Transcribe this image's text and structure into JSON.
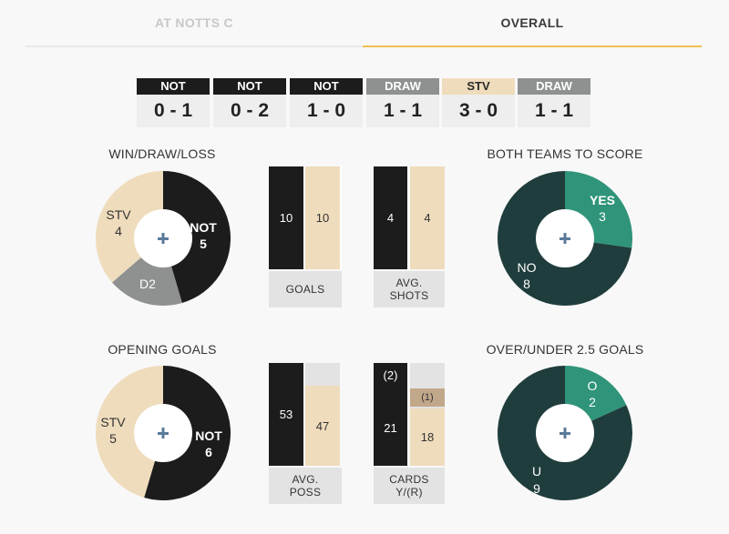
{
  "tabs": [
    {
      "label": "AT NOTTS C"
    },
    {
      "label": "OVERALL"
    }
  ],
  "colors": {
    "not": "#1c1c1c",
    "stv": "#efdcbc",
    "draw": "#8e9190",
    "btts_yes": "#2f9479",
    "btts_no": "#1f3d3c",
    "accent": "#f0c050"
  },
  "form": [
    {
      "team": "NOT",
      "score": "0 - 1"
    },
    {
      "team": "NOT",
      "score": "0 - 2"
    },
    {
      "team": "NOT",
      "score": "1 - 0"
    },
    {
      "team": "DRAW",
      "score": "1 - 1"
    },
    {
      "team": "STV",
      "score": "3 - 0"
    },
    {
      "team": "DRAW",
      "score": "1 - 1"
    }
  ],
  "win_draw_loss": {
    "title": "WIN/DRAW/LOSS",
    "segments": [
      {
        "name": "NOT",
        "value": 5,
        "label": "NOT",
        "count": "5"
      },
      {
        "name": "D",
        "value": 2,
        "label": "D2",
        "count": ""
      },
      {
        "name": "STV",
        "value": 4,
        "label": "STV",
        "count": "4"
      }
    ]
  },
  "goals": {
    "caption": [
      "GOALS"
    ],
    "not": "10",
    "stv": "10"
  },
  "avg_shots": {
    "caption": [
      "AVG.",
      "SHOTS"
    ],
    "not": "4",
    "stv": "4"
  },
  "btts": {
    "title": "BOTH TEAMS TO SCORE",
    "segments": [
      {
        "name": "YES",
        "value": 3,
        "label": "YES",
        "count": "3"
      },
      {
        "name": "NO",
        "value": 8,
        "label": "NO",
        "count": "8"
      }
    ]
  },
  "opening_goals": {
    "title": "OPENING GOALS",
    "segments": [
      {
        "name": "NOT",
        "value": 6,
        "label": "NOT",
        "count": "6"
      },
      {
        "name": "STV",
        "value": 5,
        "label": "STV",
        "count": "5"
      }
    ]
  },
  "avg_poss": {
    "caption": [
      "AVG.",
      "POSS"
    ],
    "not": "53",
    "stv": "47",
    "not_pct": 53,
    "stv_pct": 47
  },
  "cards": {
    "caption": [
      "CARDS",
      "Y/(R)"
    ],
    "not_y": "21",
    "not_r": "(2)",
    "stv_y": "18",
    "stv_r": "(1)"
  },
  "over_under": {
    "title": "OVER/UNDER 2.5 GOALS",
    "segments": [
      {
        "name": "O",
        "value": 2,
        "label": "O",
        "count": "2"
      },
      {
        "name": "U",
        "value": 9,
        "label": "U",
        "count": "9"
      }
    ]
  }
}
